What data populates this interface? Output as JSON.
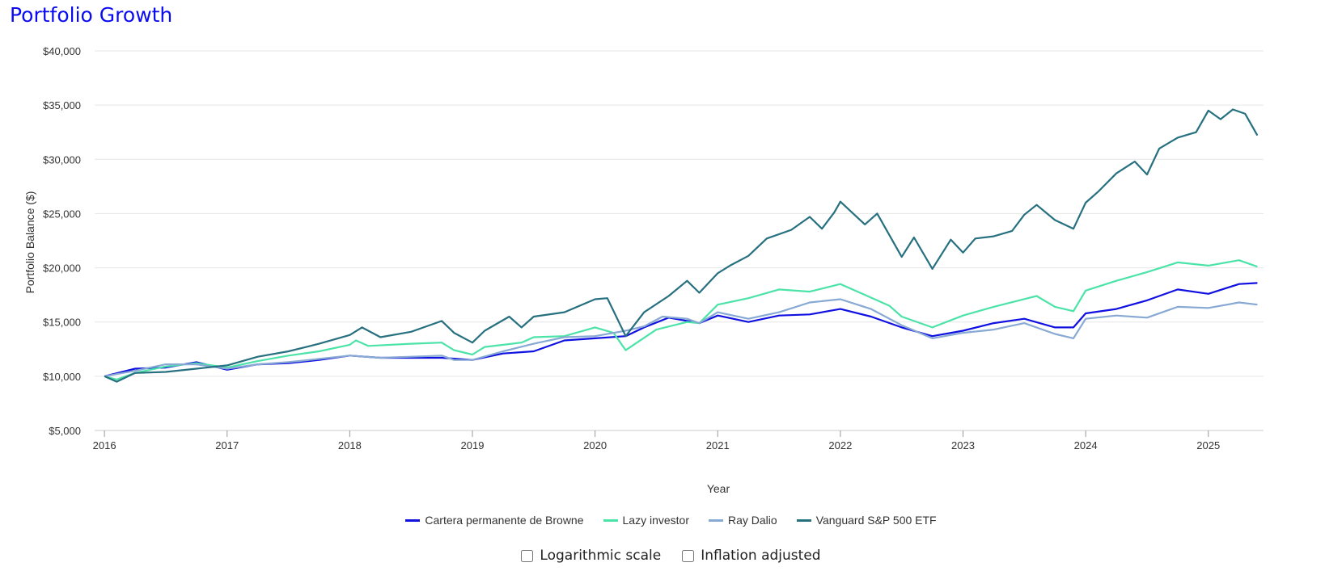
{
  "page": {
    "title": "Portfolio Growth"
  },
  "controls": {
    "log_scale_label": "Logarithmic scale",
    "inflation_label": "Inflation adjusted"
  },
  "chart_data": {
    "type": "line",
    "title": "Portfolio Growth",
    "xlabel": "Year",
    "ylabel": "Portfolio Balance ($)",
    "xlim": [
      2015.92,
      2025.45
    ],
    "ylim": [
      5000,
      40000
    ],
    "x_ticks": [
      2016,
      2017,
      2018,
      2019,
      2020,
      2021,
      2022,
      2023,
      2024,
      2025
    ],
    "y_ticks": [
      5000,
      10000,
      15000,
      20000,
      25000,
      30000,
      35000,
      40000
    ],
    "y_tick_labels": [
      "$5,000",
      "$10,000",
      "$15,000",
      "$20,000",
      "$25,000",
      "$30,000",
      "$35,000",
      "$40,000"
    ],
    "grid": true,
    "legend_position": "bottom",
    "series": [
      {
        "name": "Cartera permanente de Browne",
        "color": "#1010e0",
        "points": [
          [
            2016.0,
            10000
          ],
          [
            2016.25,
            10700
          ],
          [
            2016.5,
            10800
          ],
          [
            2016.75,
            11300
          ],
          [
            2017.0,
            10600
          ],
          [
            2017.25,
            11100
          ],
          [
            2017.5,
            11200
          ],
          [
            2017.75,
            11500
          ],
          [
            2018.0,
            11900
          ],
          [
            2018.25,
            11700
          ],
          [
            2018.5,
            11700
          ],
          [
            2018.75,
            11700
          ],
          [
            2019.0,
            11500
          ],
          [
            2019.25,
            12100
          ],
          [
            2019.5,
            12300
          ],
          [
            2019.75,
            13300
          ],
          [
            2020.0,
            13500
          ],
          [
            2020.25,
            13700
          ],
          [
            2020.4,
            14500
          ],
          [
            2020.6,
            15400
          ],
          [
            2020.85,
            14900
          ],
          [
            2021.0,
            15600
          ],
          [
            2021.25,
            15000
          ],
          [
            2021.5,
            15600
          ],
          [
            2021.75,
            15700
          ],
          [
            2022.0,
            16200
          ],
          [
            2022.25,
            15500
          ],
          [
            2022.5,
            14500
          ],
          [
            2022.75,
            13700
          ],
          [
            2023.0,
            14200
          ],
          [
            2023.25,
            14900
          ],
          [
            2023.5,
            15300
          ],
          [
            2023.75,
            14500
          ],
          [
            2023.9,
            14500
          ],
          [
            2024.0,
            15800
          ],
          [
            2024.25,
            16200
          ],
          [
            2024.5,
            17000
          ],
          [
            2024.75,
            18000
          ],
          [
            2025.0,
            17600
          ],
          [
            2025.25,
            18500
          ],
          [
            2025.4,
            18600
          ]
        ]
      },
      {
        "name": "Lazy investor",
        "color": "#4be3a8",
        "points": [
          [
            2016.0,
            10000
          ],
          [
            2016.1,
            9700
          ],
          [
            2016.25,
            10300
          ],
          [
            2016.5,
            10900
          ],
          [
            2016.75,
            11200
          ],
          [
            2017.0,
            10800
          ],
          [
            2017.25,
            11400
          ],
          [
            2017.5,
            11900
          ],
          [
            2017.75,
            12300
          ],
          [
            2018.0,
            12900
          ],
          [
            2018.05,
            13300
          ],
          [
            2018.15,
            12800
          ],
          [
            2018.5,
            13000
          ],
          [
            2018.75,
            13100
          ],
          [
            2018.85,
            12400
          ],
          [
            2019.0,
            12000
          ],
          [
            2019.1,
            12700
          ],
          [
            2019.4,
            13100
          ],
          [
            2019.5,
            13600
          ],
          [
            2019.75,
            13700
          ],
          [
            2020.0,
            14500
          ],
          [
            2020.15,
            14000
          ],
          [
            2020.25,
            12400
          ],
          [
            2020.5,
            14300
          ],
          [
            2020.75,
            15000
          ],
          [
            2020.85,
            14900
          ],
          [
            2021.0,
            16600
          ],
          [
            2021.25,
            17200
          ],
          [
            2021.5,
            18000
          ],
          [
            2021.75,
            17800
          ],
          [
            2022.0,
            18500
          ],
          [
            2022.2,
            17500
          ],
          [
            2022.4,
            16500
          ],
          [
            2022.5,
            15500
          ],
          [
            2022.75,
            14500
          ],
          [
            2023.0,
            15600
          ],
          [
            2023.25,
            16400
          ],
          [
            2023.6,
            17400
          ],
          [
            2023.75,
            16400
          ],
          [
            2023.9,
            16000
          ],
          [
            2024.0,
            17900
          ],
          [
            2024.25,
            18800
          ],
          [
            2024.5,
            19600
          ],
          [
            2024.75,
            20500
          ],
          [
            2025.0,
            20200
          ],
          [
            2025.25,
            20700
          ],
          [
            2025.4,
            20100
          ]
        ]
      },
      {
        "name": "Ray Dalio",
        "color": "#87a9d3",
        "points": [
          [
            2016.0,
            10000
          ],
          [
            2016.25,
            10500
          ],
          [
            2016.5,
            11100
          ],
          [
            2016.75,
            11100
          ],
          [
            2017.0,
            10700
          ],
          [
            2017.25,
            11100
          ],
          [
            2017.5,
            11300
          ],
          [
            2017.75,
            11600
          ],
          [
            2018.0,
            11900
          ],
          [
            2018.25,
            11700
          ],
          [
            2018.5,
            11800
          ],
          [
            2018.75,
            11900
          ],
          [
            2018.85,
            11500
          ],
          [
            2019.0,
            11500
          ],
          [
            2019.25,
            12300
          ],
          [
            2019.5,
            13000
          ],
          [
            2019.75,
            13600
          ],
          [
            2020.0,
            13700
          ],
          [
            2020.25,
            14200
          ],
          [
            2020.4,
            14600
          ],
          [
            2020.55,
            15500
          ],
          [
            2020.75,
            15300
          ],
          [
            2020.85,
            14900
          ],
          [
            2021.0,
            15900
          ],
          [
            2021.25,
            15300
          ],
          [
            2021.5,
            15900
          ],
          [
            2021.75,
            16800
          ],
          [
            2022.0,
            17100
          ],
          [
            2022.25,
            16200
          ],
          [
            2022.5,
            14700
          ],
          [
            2022.75,
            13500
          ],
          [
            2023.0,
            14000
          ],
          [
            2023.25,
            14300
          ],
          [
            2023.5,
            14900
          ],
          [
            2023.75,
            13900
          ],
          [
            2023.9,
            13500
          ],
          [
            2024.0,
            15300
          ],
          [
            2024.25,
            15600
          ],
          [
            2024.5,
            15400
          ],
          [
            2024.75,
            16400
          ],
          [
            2025.0,
            16300
          ],
          [
            2025.25,
            16800
          ],
          [
            2025.4,
            16600
          ]
        ]
      },
      {
        "name": "Vanguard S&P 500 ETF",
        "color": "#26707f",
        "points": [
          [
            2016.0,
            10000
          ],
          [
            2016.1,
            9500
          ],
          [
            2016.25,
            10300
          ],
          [
            2016.5,
            10400
          ],
          [
            2016.75,
            10700
          ],
          [
            2017.0,
            11000
          ],
          [
            2017.25,
            11800
          ],
          [
            2017.5,
            12300
          ],
          [
            2017.75,
            13000
          ],
          [
            2018.0,
            13800
          ],
          [
            2018.1,
            14500
          ],
          [
            2018.25,
            13600
          ],
          [
            2018.5,
            14100
          ],
          [
            2018.75,
            15100
          ],
          [
            2018.85,
            14000
          ],
          [
            2019.0,
            13100
          ],
          [
            2019.1,
            14200
          ],
          [
            2019.3,
            15500
          ],
          [
            2019.4,
            14500
          ],
          [
            2019.5,
            15500
          ],
          [
            2019.75,
            15900
          ],
          [
            2020.0,
            17100
          ],
          [
            2020.1,
            17200
          ],
          [
            2020.25,
            13700
          ],
          [
            2020.4,
            15900
          ],
          [
            2020.6,
            17400
          ],
          [
            2020.75,
            18800
          ],
          [
            2020.85,
            17700
          ],
          [
            2021.0,
            19500
          ],
          [
            2021.1,
            20200
          ],
          [
            2021.25,
            21100
          ],
          [
            2021.4,
            22700
          ],
          [
            2021.6,
            23500
          ],
          [
            2021.75,
            24700
          ],
          [
            2021.85,
            23600
          ],
          [
            2021.95,
            25100
          ],
          [
            2022.0,
            26100
          ],
          [
            2022.2,
            24000
          ],
          [
            2022.3,
            25000
          ],
          [
            2022.5,
            21000
          ],
          [
            2022.6,
            22800
          ],
          [
            2022.75,
            19900
          ],
          [
            2022.9,
            22600
          ],
          [
            2023.0,
            21400
          ],
          [
            2023.1,
            22700
          ],
          [
            2023.25,
            22900
          ],
          [
            2023.4,
            23400
          ],
          [
            2023.5,
            24900
          ],
          [
            2023.6,
            25800
          ],
          [
            2023.75,
            24400
          ],
          [
            2023.9,
            23600
          ],
          [
            2024.0,
            26000
          ],
          [
            2024.1,
            27000
          ],
          [
            2024.25,
            28700
          ],
          [
            2024.4,
            29800
          ],
          [
            2024.5,
            28600
          ],
          [
            2024.6,
            31000
          ],
          [
            2024.75,
            32000
          ],
          [
            2024.9,
            32500
          ],
          [
            2025.0,
            34500
          ],
          [
            2025.1,
            33700
          ],
          [
            2025.2,
            34600
          ],
          [
            2025.3,
            34200
          ],
          [
            2025.4,
            32200
          ]
        ]
      }
    ]
  }
}
